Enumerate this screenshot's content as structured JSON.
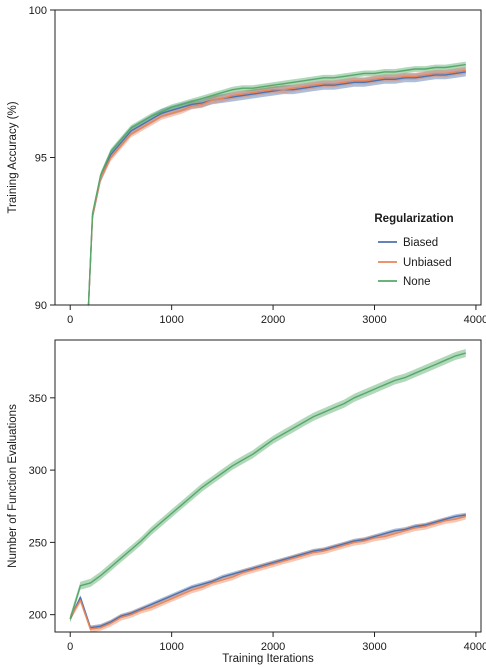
{
  "colors": {
    "Biased": "#4c72b0",
    "Unbiased": "#e8855a",
    "None": "#55a868"
  },
  "legend": {
    "title": "Regularization",
    "placement": "center-right",
    "entries": [
      "Biased",
      "Unbiased",
      "None"
    ]
  },
  "chart_data": [
    {
      "type": "line",
      "ylabel": "Training Accuracy (%)",
      "xlabel": "",
      "xlim": [
        -150,
        4050
      ],
      "ylim": [
        90,
        100
      ],
      "x_ticks": [
        0,
        1000,
        2000,
        3000,
        4000
      ],
      "y_ticks": [
        90,
        95,
        100
      ],
      "grid": false,
      "x": [
        180,
        220,
        300,
        400,
        500,
        600,
        700,
        800,
        900,
        1000,
        1100,
        1200,
        1300,
        1400,
        1500,
        1600,
        1700,
        1800,
        1900,
        2000,
        2100,
        2200,
        2300,
        2400,
        2500,
        2600,
        2700,
        2800,
        2900,
        3000,
        3100,
        3200,
        3300,
        3400,
        3500,
        3600,
        3700,
        3800,
        3900
      ],
      "series": [
        {
          "name": "Biased",
          "values": [
            90.0,
            93.0,
            94.3,
            95.1,
            95.5,
            95.9,
            96.1,
            96.3,
            96.5,
            96.6,
            96.7,
            96.8,
            96.85,
            96.95,
            97.0,
            97.05,
            97.1,
            97.15,
            97.2,
            97.25,
            97.3,
            97.3,
            97.35,
            97.4,
            97.45,
            97.45,
            97.5,
            97.55,
            97.55,
            97.6,
            97.65,
            97.65,
            97.7,
            97.7,
            97.75,
            97.8,
            97.8,
            97.85,
            97.9
          ],
          "band": 0.15
        },
        {
          "name": "Unbiased",
          "values": [
            90.0,
            93.0,
            94.3,
            95.0,
            95.4,
            95.8,
            96.0,
            96.2,
            96.4,
            96.5,
            96.6,
            96.75,
            96.8,
            96.95,
            97.0,
            97.1,
            97.15,
            97.2,
            97.25,
            97.3,
            97.3,
            97.35,
            97.4,
            97.45,
            97.5,
            97.5,
            97.55,
            97.6,
            97.6,
            97.65,
            97.7,
            97.7,
            97.75,
            97.75,
            97.8,
            97.85,
            97.85,
            97.9,
            97.95
          ],
          "band": 0.12
        },
        {
          "name": "None",
          "values": [
            90.0,
            93.1,
            94.4,
            95.2,
            95.6,
            96.0,
            96.2,
            96.4,
            96.55,
            96.7,
            96.8,
            96.9,
            97.0,
            97.1,
            97.2,
            97.3,
            97.35,
            97.35,
            97.4,
            97.45,
            97.5,
            97.55,
            97.6,
            97.65,
            97.7,
            97.7,
            97.75,
            97.8,
            97.85,
            97.85,
            97.9,
            97.9,
            97.95,
            98.0,
            98.0,
            98.05,
            98.05,
            98.1,
            98.15
          ],
          "band": 0.1
        }
      ]
    },
    {
      "type": "line",
      "ylabel": "Number of Function Evaluations",
      "xlabel": "Training Iterations",
      "xlim": [
        -150,
        4050
      ],
      "ylim": [
        188,
        390
      ],
      "x_ticks": [
        0,
        1000,
        2000,
        3000,
        4000
      ],
      "y_ticks": [
        200,
        250,
        300,
        350
      ],
      "grid": false,
      "x": [
        0,
        100,
        200,
        300,
        400,
        500,
        600,
        700,
        800,
        900,
        1000,
        1100,
        1200,
        1300,
        1400,
        1500,
        1600,
        1700,
        1800,
        1900,
        2000,
        2100,
        2200,
        2300,
        2400,
        2500,
        2600,
        2700,
        2800,
        2900,
        3000,
        3100,
        3200,
        3300,
        3400,
        3500,
        3600,
        3700,
        3800,
        3900
      ],
      "series": [
        {
          "name": "Biased",
          "values": [
            197,
            212,
            191,
            192,
            195,
            199,
            201,
            204,
            207,
            210,
            213,
            216,
            219,
            221,
            223,
            226,
            228,
            230,
            232,
            234,
            236,
            238,
            240,
            242,
            244,
            245,
            247,
            249,
            251,
            252,
            254,
            256,
            258,
            259,
            261,
            262,
            264,
            266,
            268,
            269
          ],
          "band": 1.5
        },
        {
          "name": "Unbiased",
          "values": [
            198,
            210,
            190,
            191,
            194,
            198,
            200,
            203,
            205,
            208,
            211,
            214,
            217,
            219,
            222,
            224,
            226,
            229,
            231,
            233,
            235,
            237,
            239,
            241,
            243,
            244,
            246,
            248,
            250,
            251,
            253,
            254,
            256,
            258,
            260,
            261,
            263,
            265,
            266,
            268
          ],
          "band": 2.2
        },
        {
          "name": "None",
          "values": [
            197,
            220,
            222,
            227,
            233,
            239,
            245,
            251,
            258,
            264,
            270,
            276,
            282,
            288,
            293,
            298,
            303,
            307,
            311,
            316,
            321,
            325,
            329,
            333,
            337,
            340,
            343,
            346,
            350,
            353,
            356,
            359,
            362,
            364,
            367,
            370,
            373,
            376,
            379,
            381
          ],
          "band": 2.8
        }
      ]
    }
  ]
}
